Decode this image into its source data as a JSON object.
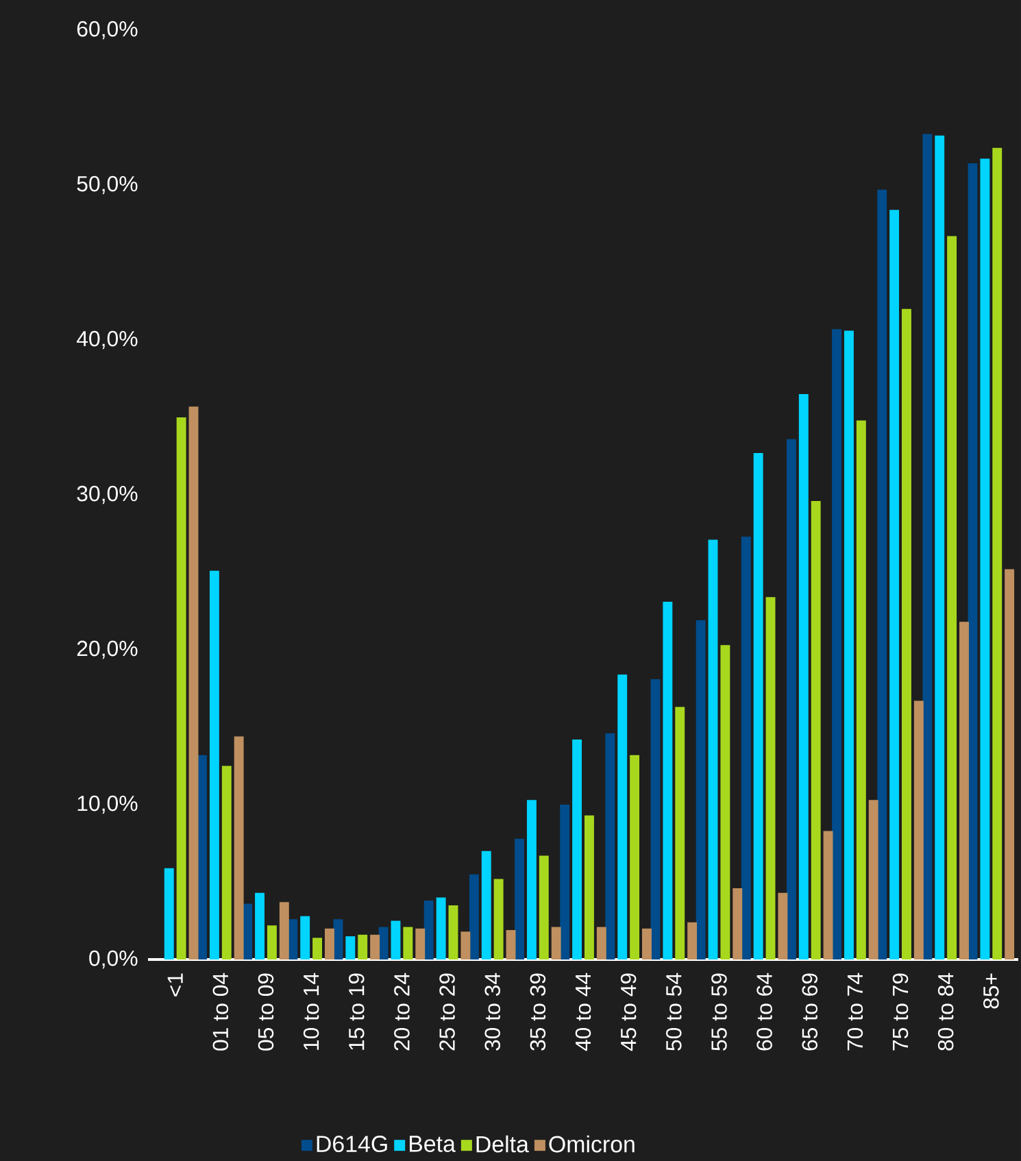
{
  "chart_data": {
    "type": "bar",
    "categories": [
      "<1",
      "01 to 04",
      "05 to 09",
      "10 to 14",
      "15 to 19",
      "20 to 24",
      "25 to 29",
      "30 to 34",
      "35 to 39",
      "40 to 44",
      "45 to 49",
      "50 to 54",
      "55 to 59",
      "60 to 64",
      "65 to 69",
      "70 to 74",
      "75 to 79",
      "80 to 84",
      "85+"
    ],
    "series": [
      {
        "name": "D614G",
        "color": "#004c8c",
        "values": [
          null,
          13.2,
          3.6,
          2.6,
          2.6,
          2.1,
          3.8,
          5.5,
          7.8,
          10.0,
          14.6,
          18.1,
          21.9,
          27.3,
          33.6,
          40.7,
          49.7,
          53.3,
          51.4
        ]
      },
      {
        "name": "Beta",
        "color": "#00d4ff",
        "values": [
          5.9,
          25.1,
          4.3,
          2.8,
          1.5,
          2.5,
          4.0,
          7.0,
          10.3,
          14.2,
          18.4,
          23.1,
          27.1,
          32.7,
          36.5,
          40.6,
          48.4,
          53.2,
          51.7
        ]
      },
      {
        "name": "Delta",
        "color": "#a8d81e",
        "values": [
          35.0,
          12.5,
          2.2,
          1.4,
          1.6,
          2.1,
          3.5,
          5.2,
          6.7,
          9.3,
          13.2,
          16.3,
          20.3,
          23.4,
          29.6,
          34.8,
          42.0,
          46.7,
          52.4
        ]
      },
      {
        "name": "Omicron",
        "color": "#c09060",
        "values": [
          35.7,
          14.4,
          3.7,
          2.0,
          1.6,
          2.0,
          1.8,
          1.9,
          2.1,
          2.1,
          2.0,
          2.4,
          4.6,
          4.3,
          8.3,
          10.3,
          16.7,
          21.8,
          25.2
        ]
      }
    ],
    "ylim": [
      0,
      60
    ],
    "yticks": [
      {
        "value": 0,
        "label": "0,0%"
      },
      {
        "value": 10,
        "label": "10,0%"
      },
      {
        "value": 20,
        "label": "20,0%"
      },
      {
        "value": 30,
        "label": "30,0%"
      },
      {
        "value": 40,
        "label": "40,0%"
      },
      {
        "value": 50,
        "label": "50,0%"
      },
      {
        "value": 60,
        "label": "60,0%"
      }
    ],
    "legend": "bottom"
  }
}
